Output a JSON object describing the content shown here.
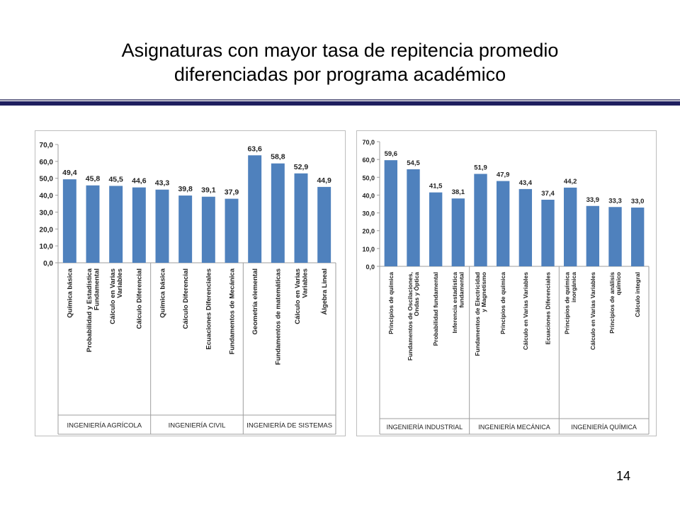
{
  "slide": {
    "title_line1": "Asignaturas con mayor tasa de repitencia promedio",
    "title_line2": "diferenciadas por programa académico",
    "page_number": "14",
    "accent_color": "#1f1f5f",
    "bar_color": "#4f81bd"
  },
  "chart_data": [
    {
      "type": "bar",
      "title": "",
      "ylabel": "",
      "ylim": [
        0,
        70
      ],
      "yticks": [
        "0,0",
        "10,0",
        "20,0",
        "30,0",
        "40,0",
        "50,0",
        "60,0",
        "70,0"
      ],
      "grid": false,
      "categories": [
        "Química básica",
        "Probabilidad y Estadística Fundamental",
        "Cálculo en Varias Variables",
        "Cálculo Diferencial",
        "Química básica",
        "Cálculo Diferencial",
        "Ecuaciones Diferenciales",
        "Fundamentos de Mecánica",
        "Geometría elemental",
        "Fundamentos de matemáticas",
        "Cálculo en Varias Variables",
        "Álgebra Lineal"
      ],
      "values": [
        49.4,
        45.8,
        45.5,
        44.6,
        43.3,
        39.8,
        39.1,
        37.9,
        63.6,
        58.8,
        52.9,
        44.9
      ],
      "value_labels": [
        "49,4",
        "45,8",
        "45,5",
        "44,6",
        "43,3",
        "39,8",
        "39,1",
        "37,9",
        "63,6",
        "58,8",
        "52,9",
        "44,9"
      ],
      "groups": [
        {
          "label": "INGENIERÍA AGRÍCOLA",
          "count": 4
        },
        {
          "label": "INGENIERÍA CIVIL",
          "count": 4
        },
        {
          "label": "INGENIERÍA DE SISTEMAS",
          "count": 4
        }
      ]
    },
    {
      "type": "bar",
      "title": "",
      "ylabel": "",
      "ylim": [
        0,
        70
      ],
      "yticks": [
        "0,0",
        "10,0",
        "20,0",
        "30,0",
        "40,0",
        "50,0",
        "60,0",
        "70,0"
      ],
      "grid": false,
      "categories": [
        "Principios de química",
        "Fundamentos de Oscilaciones, Ondas y Óptica",
        "Probabilidad fundamental",
        "Inferencia estadística fundamental",
        "Fundamentos de Electricidad y Magnetismo",
        "Principios de química",
        "Cálculo en Varias Variables",
        "Ecuaciones Diferenciales",
        "Principios de química inorgánica",
        "Cálculo en Varias Variables",
        "Principios de análisis químico",
        "Cálculo integral"
      ],
      "values": [
        59.6,
        54.5,
        41.5,
        38.1,
        51.9,
        47.9,
        43.4,
        37.4,
        44.2,
        33.9,
        33.3,
        33.0
      ],
      "value_labels": [
        "59,6",
        "54,5",
        "41,5",
        "38,1",
        "51,9",
        "47,9",
        "43,4",
        "37,4",
        "44,2",
        "33,9",
        "33,3",
        "33,0"
      ],
      "groups": [
        {
          "label": "INGENIERÍA INDUSTRIAL",
          "count": 4
        },
        {
          "label": "INGENIERÍA MECÁNICA",
          "count": 4
        },
        {
          "label": "INGENIERÍA QUÍMICA",
          "count": 4
        }
      ]
    }
  ]
}
